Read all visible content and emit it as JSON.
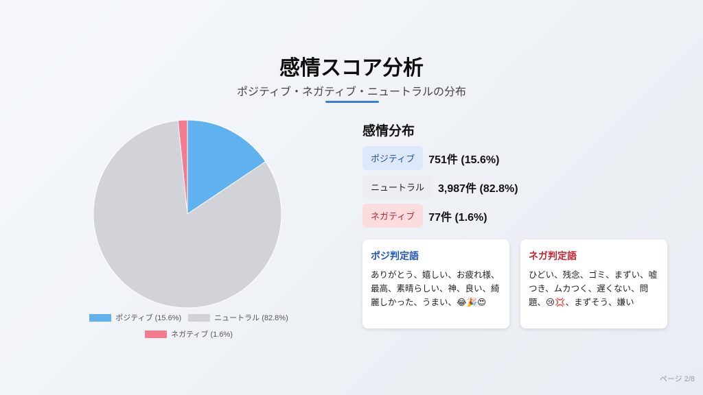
{
  "title": "感情スコア分析",
  "subtitle": "ポジティブ・ネガティブ・ニュートラルの分布",
  "chart_data": {
    "type": "pie",
    "categories": [
      "ポジティブ",
      "ニュートラル",
      "ネガティブ"
    ],
    "values": [
      15.6,
      82.8,
      1.6
    ],
    "colors": [
      "#5fb2ee",
      "#d1d3d8",
      "#f47a90"
    ],
    "legend": [
      "ポジティブ (15.6%)",
      "ニュートラル (82.8%)",
      "ネガティブ (1.6%)"
    ],
    "legend_position": "bottom"
  },
  "distribution": {
    "title": "感情分布",
    "positive": {
      "label": "ポジティブ",
      "value": "751件 (15.6%)"
    },
    "neutral": {
      "label": "ニュートラル",
      "value": "3,987件 (82.8%)"
    },
    "negative": {
      "label": "ネガティブ",
      "value": "77件 (1.6%)"
    }
  },
  "cards": {
    "positive": {
      "title": "ポジ判定語",
      "text": "ありがとう、嬉しい、お疲れ様、最高、素晴らしい、神、良い、綺麗しかった、うまい、😂🎉😍"
    },
    "negative": {
      "title": "ネガ判定語",
      "text": "ひどい、残念、ゴミ、まずい、嘘つき、ムカつく、遅くない、問題、😢💢、まずそう、嫌い"
    }
  },
  "page": "ページ 2/8"
}
